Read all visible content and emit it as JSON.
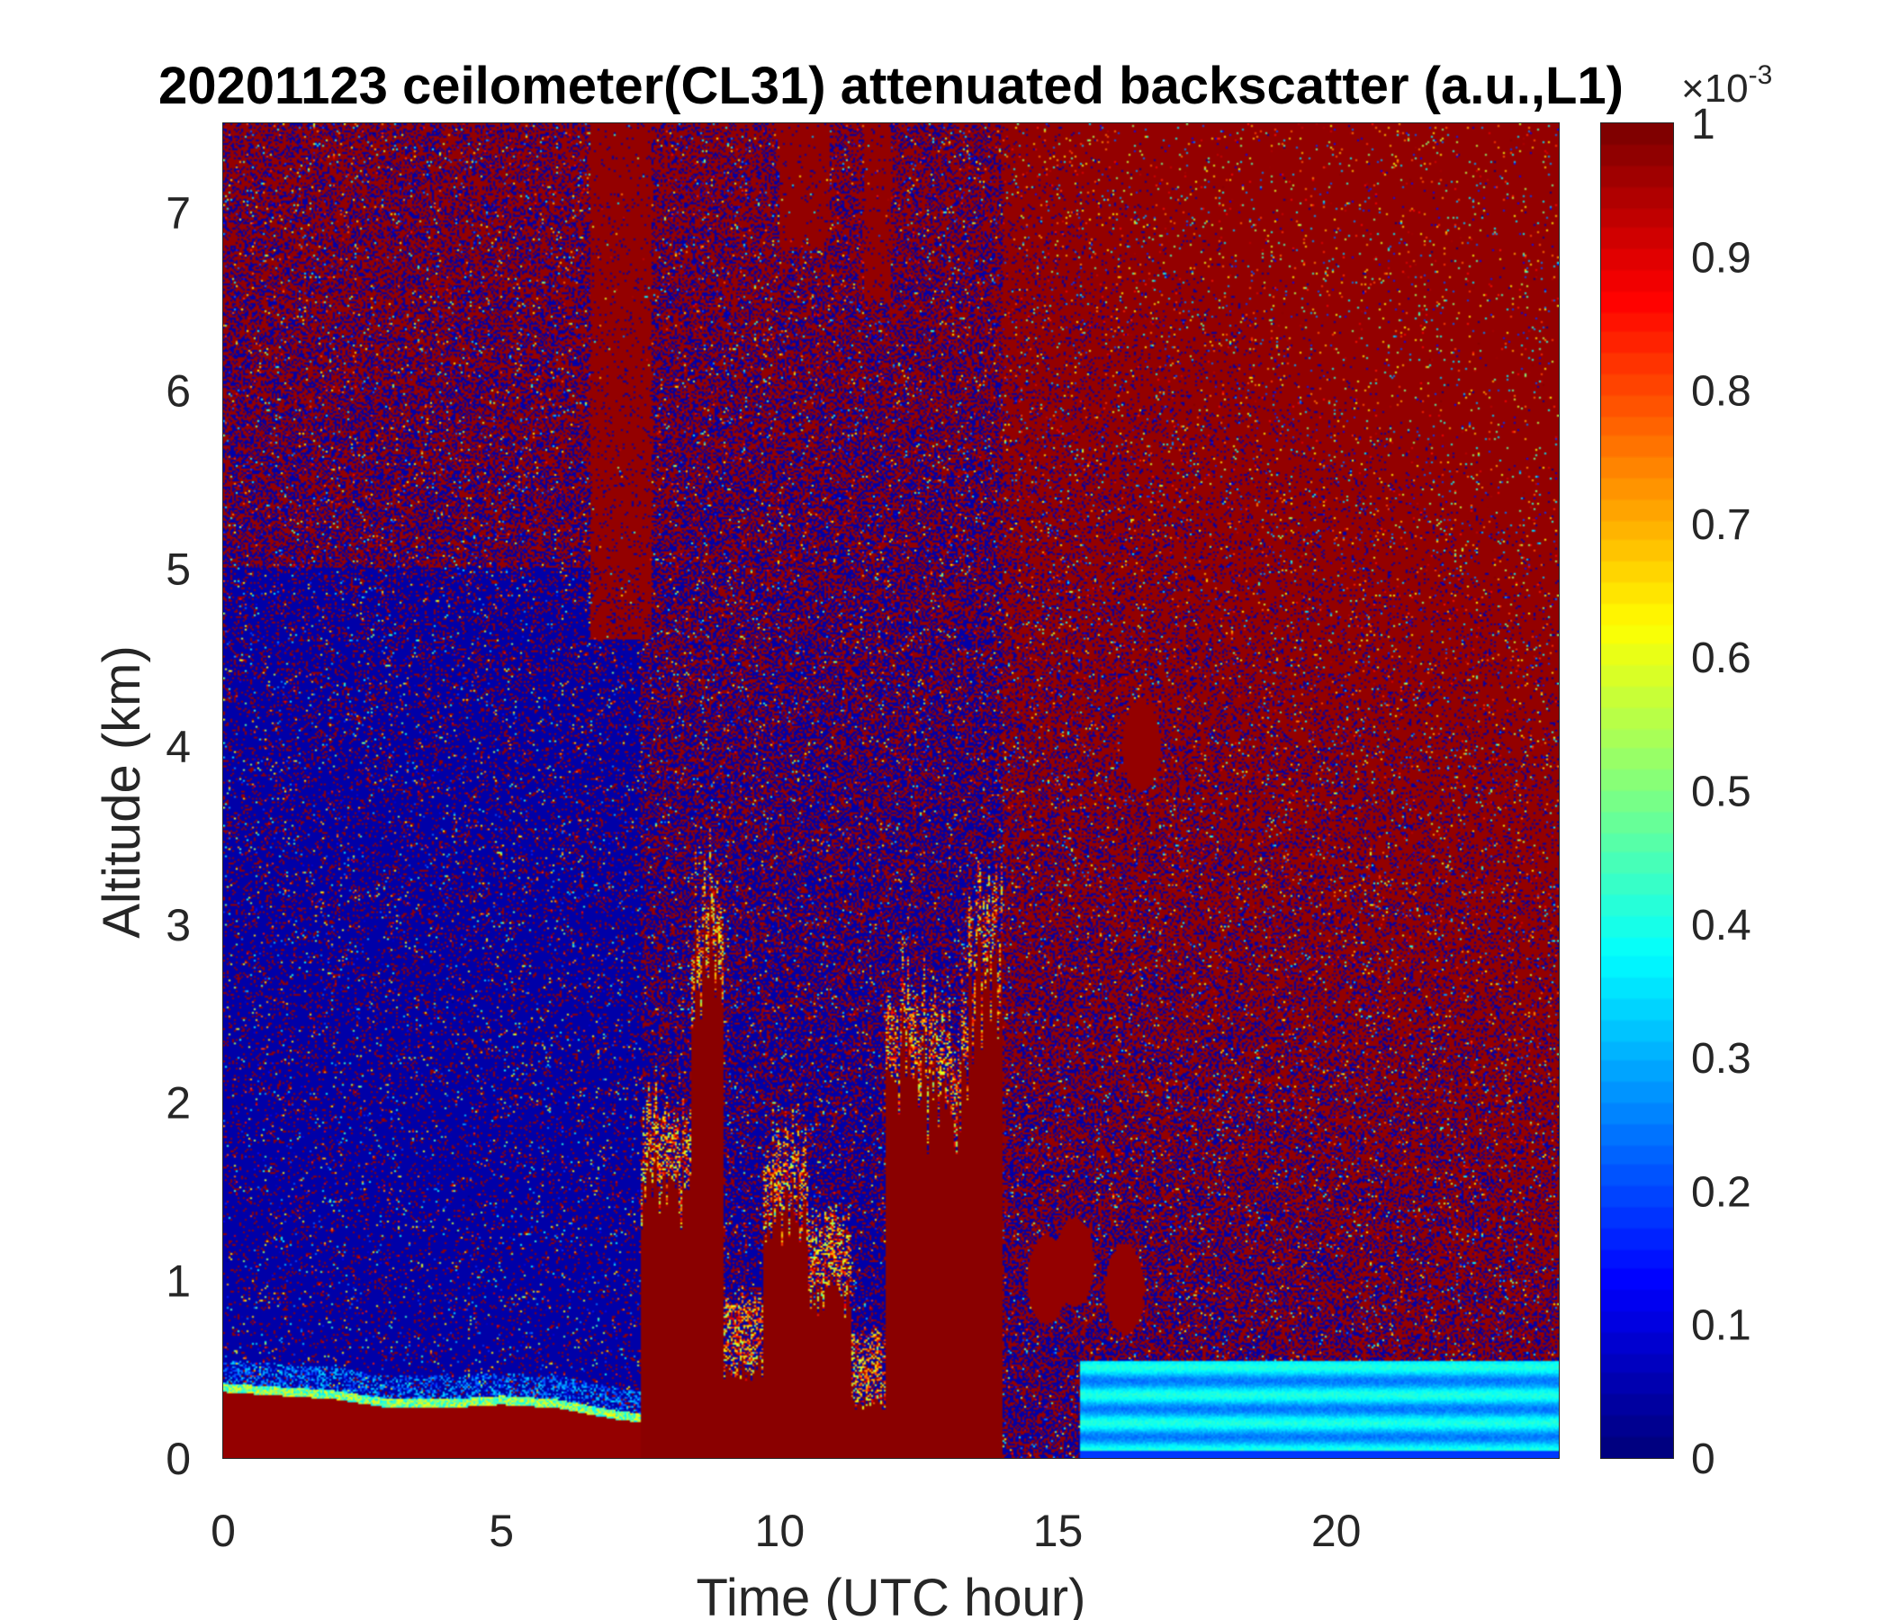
{
  "chart_data": {
    "type": "heatmap",
    "title": "20201123 ceilometer(CL31) attenuated backscatter (a.u.,L1)",
    "xlabel": "Time (UTC hour)",
    "ylabel": "Altitude (km)",
    "xlim": [
      0,
      24
    ],
    "ylim": [
      0,
      7.5
    ],
    "x_ticks": [
      0,
      5,
      10,
      15,
      20
    ],
    "x_tick_labels": [
      "0",
      "5",
      "10",
      "15",
      "20"
    ],
    "y_ticks": [
      0,
      1,
      2,
      3,
      4,
      5,
      6,
      7
    ],
    "y_tick_labels": [
      "0",
      "1",
      "2",
      "3",
      "4",
      "5",
      "6",
      "7"
    ],
    "colormap": "jet",
    "colorbar": {
      "range": [
        0,
        1
      ],
      "ticks": [
        0,
        0.1,
        0.2,
        0.3,
        0.4,
        0.5,
        0.6,
        0.7,
        0.8,
        0.9,
        1
      ],
      "tick_labels": [
        "0",
        "0.1",
        "0.2",
        "0.3",
        "0.4",
        "0.5",
        "0.6",
        "0.7",
        "0.8",
        "0.9",
        "1"
      ],
      "multiplier_base": "×10",
      "multiplier_exponent": "-3"
    },
    "features": {
      "boundary_layer": [
        [
          0,
          0.37
        ],
        [
          1,
          0.35
        ],
        [
          2,
          0.33
        ],
        [
          3,
          0.28
        ],
        [
          4,
          0.28
        ],
        [
          5,
          0.3
        ],
        [
          6,
          0.28
        ],
        [
          7,
          0.22
        ],
        [
          7.5,
          0.2
        ]
      ],
      "dense_columns": [
        {
          "x0": 7.5,
          "x1": 8.4,
          "ytop": 1.5
        },
        {
          "x0": 8.4,
          "x1": 9.0,
          "ytop": 2.8
        },
        {
          "x0": 9.0,
          "x1": 9.7,
          "ytop": 0.5
        },
        {
          "x0": 9.7,
          "x1": 10.5,
          "ytop": 1.4
        },
        {
          "x0": 10.5,
          "x1": 11.3,
          "ytop": 0.9
        },
        {
          "x0": 11.3,
          "x1": 11.9,
          "ytop": 0.3
        },
        {
          "x0": 11.9,
          "x1": 12.6,
          "ytop": 2.2
        },
        {
          "x0": 12.6,
          "x1": 13.4,
          "ytop": 2.0
        },
        {
          "x0": 13.4,
          "x1": 14.0,
          "ytop": 2.6
        }
      ],
      "upper_aerosol_columns": [
        {
          "x0": 6.6,
          "x1": 7.7,
          "ybot": 4.6
        },
        {
          "x0": 10.0,
          "x1": 10.9,
          "ybot": 6.8
        },
        {
          "x0": 11.5,
          "x1": 12.0,
          "ybot": 6.5
        }
      ],
      "low_cloud_patches": [
        [
          14.8,
          1.0
        ],
        [
          15.3,
          1.1
        ],
        [
          16.2,
          0.95
        ],
        [
          16.5,
          4.0
        ]
      ],
      "surface_layer_after": {
        "x0": 15.4,
        "x1": 24,
        "ytop": 0.55
      }
    }
  }
}
